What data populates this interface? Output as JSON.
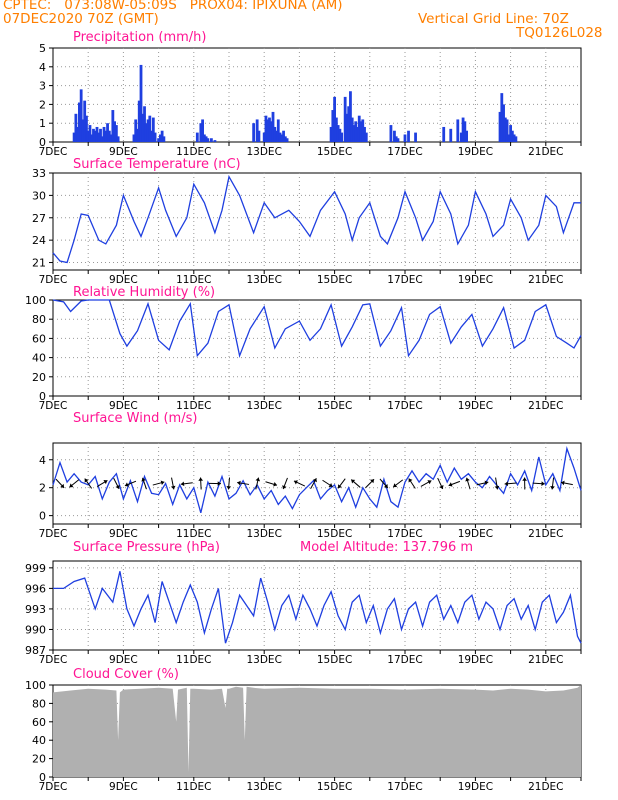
{
  "header": {
    "line1": "CPTEC:   073:08W-05:09S   PROX04: IPIXUNA (AM)",
    "line2": "07DEC2020 70Z (GMT)",
    "grid_note": "Vertical Grid Line: 70Z",
    "code": "TQ0126L028"
  },
  "colors": {
    "header": "#ff7f00",
    "title": "#ff1493",
    "line": "#1f3fe0",
    "cloud": "#b0b0b0",
    "grid": "#999999",
    "arrow": "#000000"
  },
  "date_labels": [
    "7DEC",
    "9DEC",
    "11DEC",
    "13DEC",
    "15DEC",
    "17DEC",
    "19DEC",
    "21DEC"
  ],
  "x_axis": {
    "start_day": 7.0,
    "end_day": 22.0,
    "grid_days": [
      8,
      9,
      10,
      11,
      12,
      13,
      14,
      15,
      16,
      17,
      18,
      19,
      20,
      21
    ]
  },
  "panels": {
    "precipitation": {
      "title": "Precipitation (mm/h)",
      "yticks": [
        "0",
        "1",
        "2",
        "3",
        "4",
        "5"
      ],
      "ylim": [
        0,
        5
      ]
    },
    "temperature": {
      "title": "Surface Temperature (nC)",
      "yticks": [
        "21",
        "24",
        "27",
        "30",
        "33"
      ],
      "ylim": [
        20,
        33
      ]
    },
    "humidity": {
      "title": "Relative Humidity (%)",
      "yticks": [
        "0",
        "20",
        "40",
        "60",
        "80",
        "100"
      ],
      "ylim": [
        0,
        100
      ]
    },
    "wind": {
      "title": "Surface Wind (m/s)",
      "yticks": [
        "0",
        "2",
        "4"
      ],
      "ylim": [
        -0.6,
        5.2
      ]
    },
    "pressure": {
      "title": "Surface Pressure (hPa)",
      "altitude": "Model Altitude: 137.796 m",
      "yticks": [
        "987",
        "990",
        "993",
        "996",
        "999"
      ],
      "ylim": [
        987,
        1000
      ]
    },
    "cloud": {
      "title": "Cloud Cover (%)",
      "yticks": [
        "0",
        "20",
        "40",
        "60",
        "80",
        "100"
      ],
      "ylim": [
        0,
        100
      ]
    }
  },
  "chart_data": [
    {
      "type": "bar",
      "name": "precipitation",
      "title": "Precipitation (mm/h)",
      "ylabel": "mm/h",
      "ylim": [
        0,
        5
      ],
      "x": [
        7.6,
        7.65,
        7.7,
        7.75,
        7.8,
        7.85,
        7.9,
        7.95,
        8.0,
        8.05,
        8.1,
        8.15,
        8.2,
        8.25,
        8.3,
        8.35,
        8.4,
        8.45,
        8.5,
        8.55,
        8.6,
        8.65,
        8.7,
        8.75,
        8.8,
        8.85,
        9.3,
        9.35,
        9.4,
        9.45,
        9.5,
        9.55,
        9.6,
        9.65,
        9.7,
        9.75,
        9.8,
        9.85,
        9.9,
        10.0,
        10.05,
        10.1,
        10.15,
        11.1,
        11.2,
        11.25,
        11.3,
        11.35,
        11.4,
        11.5,
        11.6,
        12.7,
        12.8,
        12.85,
        13.0,
        13.05,
        13.1,
        13.15,
        13.2,
        13.25,
        13.3,
        13.35,
        13.4,
        13.45,
        13.5,
        13.55,
        13.6,
        13.65,
        14.9,
        14.95,
        15.0,
        15.05,
        15.1,
        15.15,
        15.2,
        15.3,
        15.35,
        15.4,
        15.45,
        15.5,
        15.55,
        15.6,
        15.65,
        15.7,
        15.75,
        15.8,
        15.85,
        15.9,
        16.6,
        16.7,
        16.75,
        16.8,
        17.0,
        17.1,
        17.3,
        18.1,
        18.3,
        18.5,
        18.6,
        18.65,
        18.7,
        18.75,
        19.7,
        19.75,
        19.8,
        19.85,
        19.9,
        19.95,
        20.0,
        20.05,
        20.1,
        20.15
      ],
      "values": [
        0.5,
        1.5,
        0.8,
        2.1,
        2.8,
        1.2,
        2.2,
        1.4,
        0.6,
        0.9,
        0.4,
        0.7,
        0.6,
        0.8,
        0.5,
        0.7,
        0.3,
        0.8,
        0.6,
        1.0,
        0.6,
        0.4,
        1.7,
        1.1,
        0.9,
        0.3,
        0.4,
        1.2,
        0.7,
        2.2,
        4.1,
        1.5,
        1.9,
        1.0,
        1.2,
        1.4,
        0.6,
        1.3,
        0.5,
        0.2,
        0.4,
        0.6,
        0.3,
        0.5,
        1.0,
        1.2,
        0.4,
        0.3,
        0.2,
        0.2,
        0.1,
        1.0,
        1.2,
        0.6,
        0.5,
        1.4,
        1.2,
        1.3,
        1.1,
        1.6,
        0.8,
        0.6,
        1.2,
        0.5,
        0.4,
        0.6,
        0.3,
        0.2,
        0.8,
        1.7,
        2.4,
        1.3,
        0.9,
        0.7,
        0.5,
        2.4,
        1.5,
        1.9,
        2.7,
        1.3,
        0.9,
        1.1,
        0.8,
        1.4,
        1.1,
        1.2,
        0.8,
        0.5,
        0.9,
        0.6,
        0.3,
        0.2,
        0.4,
        0.6,
        0.5,
        0.8,
        0.7,
        1.2,
        0.5,
        1.3,
        1.1,
        0.6,
        1.6,
        2.6,
        2.0,
        1.3,
        1.2,
        0.4,
        0.9,
        0.6,
        0.4,
        0.3
      ]
    },
    {
      "type": "line",
      "name": "temperature",
      "title": "Surface Temperature (nC)",
      "ylabel": "nC",
      "ylim": [
        20,
        33
      ],
      "x": [
        7.0,
        7.2,
        7.4,
        7.6,
        7.8,
        8.0,
        8.3,
        8.5,
        8.8,
        9.0,
        9.3,
        9.5,
        9.7,
        10.0,
        10.2,
        10.5,
        10.8,
        11.0,
        11.3,
        11.6,
        11.8,
        12.0,
        12.3,
        12.7,
        13.0,
        13.3,
        13.7,
        14.0,
        14.3,
        14.6,
        15.0,
        15.3,
        15.5,
        15.7,
        16.0,
        16.3,
        16.5,
        16.8,
        17.0,
        17.3,
        17.5,
        17.8,
        18.0,
        18.3,
        18.5,
        18.8,
        19.0,
        19.3,
        19.5,
        19.8,
        20.0,
        20.3,
        20.5,
        20.8,
        21.0,
        21.3,
        21.5,
        21.8,
        22.0
      ],
      "values": [
        22.3,
        21.2,
        21.0,
        24.0,
        27.5,
        27.3,
        24.0,
        23.5,
        26.0,
        30.0,
        26.5,
        24.5,
        27.0,
        31.0,
        28.0,
        24.5,
        27.0,
        31.5,
        29.0,
        25.0,
        28.0,
        32.5,
        30.0,
        25.0,
        29.0,
        27.0,
        28.0,
        26.5,
        24.5,
        28.0,
        30.5,
        27.5,
        24.0,
        27.0,
        29.0,
        24.5,
        23.5,
        27.0,
        30.5,
        27.0,
        24.0,
        26.5,
        30.5,
        27.5,
        23.5,
        26.0,
        30.5,
        27.5,
        24.5,
        26.0,
        29.5,
        27.0,
        24.0,
        26.0,
        30.0,
        28.5,
        25.0,
        29.0,
        29.0
      ]
    },
    {
      "type": "line",
      "name": "humidity",
      "title": "Relative Humidity (%)",
      "ylabel": "%",
      "ylim": [
        0,
        100
      ],
      "x": [
        7.0,
        7.3,
        7.5,
        7.8,
        8.0,
        8.3,
        8.6,
        8.9,
        9.1,
        9.4,
        9.7,
        10.0,
        10.3,
        10.6,
        10.9,
        11.1,
        11.4,
        11.7,
        12.0,
        12.3,
        12.6,
        13.0,
        13.3,
        13.6,
        14.0,
        14.3,
        14.6,
        14.9,
        15.2,
        15.5,
        15.8,
        16.0,
        16.3,
        16.6,
        16.9,
        17.1,
        17.4,
        17.7,
        18.0,
        18.3,
        18.6,
        18.9,
        19.2,
        19.5,
        19.8,
        20.1,
        20.4,
        20.7,
        21.0,
        21.3,
        21.6,
        21.8,
        22.0
      ],
      "values": [
        100,
        98,
        88,
        99,
        100,
        100,
        100,
        65,
        52,
        68,
        96,
        58,
        48,
        78,
        96,
        42,
        55,
        88,
        95,
        42,
        70,
        93,
        50,
        70,
        78,
        58,
        70,
        95,
        52,
        72,
        95,
        96,
        52,
        68,
        92,
        42,
        58,
        85,
        93,
        55,
        72,
        85,
        52,
        70,
        92,
        50,
        58,
        88,
        95,
        62,
        55,
        50,
        63
      ]
    },
    {
      "type": "line",
      "name": "wind",
      "title": "Surface Wind (m/s)",
      "ylabel": "m/s",
      "ylim": [
        -0.6,
        5.2
      ],
      "x": [
        7.0,
        7.2,
        7.4,
        7.6,
        7.8,
        8.0,
        8.2,
        8.4,
        8.6,
        8.8,
        9.0,
        9.2,
        9.4,
        9.6,
        9.8,
        10.0,
        10.2,
        10.4,
        10.6,
        10.8,
        11.0,
        11.2,
        11.4,
        11.6,
        11.8,
        12.0,
        12.2,
        12.4,
        12.6,
        12.8,
        13.0,
        13.2,
        13.4,
        13.6,
        13.8,
        14.0,
        14.2,
        14.4,
        14.6,
        14.8,
        15.0,
        15.2,
        15.4,
        15.6,
        15.8,
        16.0,
        16.2,
        16.4,
        16.6,
        16.8,
        17.0,
        17.2,
        17.4,
        17.6,
        17.8,
        18.0,
        18.2,
        18.4,
        18.6,
        18.8,
        19.0,
        19.2,
        19.4,
        19.6,
        19.8,
        20.0,
        20.2,
        20.4,
        20.6,
        20.8,
        21.0,
        21.2,
        21.4,
        21.6,
        21.8,
        22.0
      ],
      "values": [
        2.2,
        3.8,
        2.4,
        3.0,
        2.4,
        2.2,
        2.8,
        1.2,
        2.4,
        3.0,
        1.2,
        2.5,
        1.0,
        2.8,
        1.6,
        1.5,
        2.3,
        0.8,
        2.2,
        1.2,
        2.0,
        0.2,
        2.4,
        1.4,
        2.8,
        1.2,
        1.6,
        2.5,
        1.5,
        2.2,
        1.2,
        1.8,
        0.8,
        1.4,
        0.5,
        1.5,
        2.0,
        2.5,
        1.2,
        1.8,
        2.2,
        1.0,
        2.0,
        0.6,
        2.0,
        1.2,
        0.6,
        2.6,
        1.0,
        0.6,
        2.4,
        3.2,
        2.4,
        3.0,
        2.6,
        3.6,
        2.4,
        3.4,
        2.6,
        3.0,
        2.4,
        2.0,
        2.8,
        2.2,
        1.6,
        3.0,
        2.2,
        3.2,
        1.8,
        4.2,
        2.2,
        3.0,
        1.8,
        4.8,
        3.4,
        1.8
      ]
    },
    {
      "type": "line",
      "name": "pressure",
      "title": "Surface Pressure (hPa)",
      "ylabel": "hPa",
      "ylim": [
        987,
        1000
      ],
      "x": [
        7.0,
        7.3,
        7.6,
        7.9,
        8.2,
        8.4,
        8.7,
        8.9,
        9.1,
        9.3,
        9.5,
        9.7,
        9.9,
        10.1,
        10.3,
        10.5,
        10.7,
        10.9,
        11.1,
        11.3,
        11.5,
        11.7,
        11.9,
        12.1,
        12.3,
        12.5,
        12.7,
        12.9,
        13.1,
        13.3,
        13.5,
        13.7,
        13.9,
        14.1,
        14.3,
        14.5,
        14.7,
        14.9,
        15.1,
        15.3,
        15.5,
        15.7,
        15.9,
        16.1,
        16.3,
        16.5,
        16.7,
        16.9,
        17.1,
        17.3,
        17.5,
        17.7,
        17.9,
        18.1,
        18.3,
        18.5,
        18.7,
        18.9,
        19.1,
        19.3,
        19.5,
        19.7,
        19.9,
        20.1,
        20.3,
        20.5,
        20.7,
        20.9,
        21.1,
        21.3,
        21.5,
        21.7,
        21.9,
        22.0
      ],
      "values": [
        996.0,
        996.0,
        997.0,
        997.5,
        993.0,
        996.0,
        994.0,
        998.5,
        993.0,
        990.5,
        993.0,
        995.0,
        991.0,
        997.0,
        994.0,
        991.0,
        994.0,
        996.5,
        994.0,
        989.5,
        993.0,
        996.0,
        988.0,
        991.0,
        995.0,
        993.5,
        992.0,
        997.5,
        994.0,
        990.0,
        993.5,
        995.0,
        991.5,
        995.0,
        993.0,
        990.5,
        993.5,
        995.5,
        992.0,
        990.0,
        994.0,
        995.0,
        991.0,
        993.5,
        989.5,
        993.0,
        994.5,
        990.0,
        993.0,
        994.0,
        990.5,
        994.0,
        995.0,
        991.5,
        993.5,
        991.0,
        994.0,
        995.0,
        991.5,
        994.0,
        993.0,
        990.0,
        993.5,
        994.5,
        991.5,
        993.5,
        990.0,
        994.0,
        995.0,
        991.0,
        992.5,
        995.0,
        989.0,
        988.0
      ]
    },
    {
      "type": "area",
      "name": "cloud",
      "title": "Cloud Cover (%)",
      "ylabel": "%",
      "ylim": [
        0,
        100
      ],
      "x": [
        7.0,
        7.5,
        8.0,
        8.5,
        8.8,
        8.85,
        8.9,
        9.0,
        9.5,
        10.0,
        10.4,
        10.5,
        10.55,
        10.8,
        10.85,
        10.9,
        11.0,
        11.5,
        11.8,
        11.9,
        11.95,
        12.0,
        12.2,
        12.4,
        12.45,
        12.5,
        12.7,
        13.0,
        14.0,
        15.0,
        16.0,
        17.0,
        18.0,
        19.0,
        19.5,
        20.0,
        20.5,
        21.0,
        21.5,
        21.9,
        22.0
      ],
      "values": [
        92,
        94,
        96,
        95,
        94,
        40,
        92,
        95,
        96,
        97,
        96,
        60,
        95,
        97,
        5,
        96,
        96,
        95,
        96,
        75,
        96,
        96,
        98,
        97,
        40,
        98,
        97,
        96,
        97,
        96,
        96,
        95,
        96,
        95,
        94,
        96,
        95,
        93,
        94,
        97,
        100
      ]
    }
  ]
}
